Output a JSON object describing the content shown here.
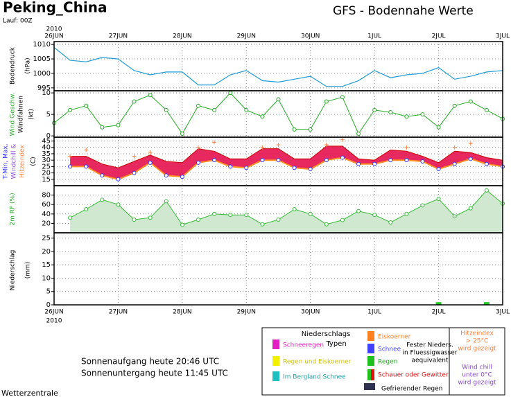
{
  "header": {
    "title": "Peking_China",
    "run": "Lauf: 00Z",
    "subtitle": "GFS - Bodennahe Werte",
    "year": "2010"
  },
  "dates": [
    "26JUN",
    "27JUN",
    "28JUN",
    "29JUN",
    "30JUN",
    "1JUL",
    "2JUL",
    "3JUL"
  ],
  "chart_data": [
    {
      "type": "line",
      "ylabel": [
        "Bodendruck",
        "(hPa)"
      ],
      "color": "#1e9bd7",
      "grid": true,
      "ylim": [
        994,
        1011
      ],
      "yticks": [
        995,
        1000,
        1005,
        1010
      ],
      "values": [
        1009,
        1004.5,
        1004,
        1005.5,
        1005,
        1001,
        999.5,
        1000.5,
        1000.5,
        996,
        996,
        999.5,
        1001,
        997.5,
        997,
        998,
        999,
        995.5,
        995.5,
        997.5,
        1001,
        998.5,
        999.5,
        1000,
        1002,
        998,
        999,
        1000.5,
        1001
      ]
    },
    {
      "type": "markedline",
      "ylabel": [
        "Wind Geschw.",
        "Windfahnen",
        "(kt)"
      ],
      "color": "#22aa22",
      "grid": true,
      "ylim": [
        -0.3,
        10.5
      ],
      "yticks": [
        0,
        5,
        10
      ],
      "values": [
        3,
        6,
        7,
        2,
        2.5,
        8,
        9.5,
        6,
        0.5,
        7,
        6,
        10,
        6,
        4.5,
        8.5,
        1.5,
        1.5,
        8,
        9,
        0.5,
        6,
        5.5,
        4.5,
        5,
        2,
        7,
        8,
        6,
        4
      ]
    },
    {
      "type": "band",
      "ylabel": [
        "T-Min, Max,",
        "Windchill &",
        "Hitzeindex",
        "(C)"
      ],
      "grid": true,
      "ylim": [
        10,
        48
      ],
      "yticks": [
        15,
        20,
        25,
        30,
        35,
        40,
        45
      ],
      "band_color": "#e4124f",
      "min_color": "#3030ff",
      "max_color": "#cc0000",
      "heat_color": "#ff8040",
      "min": [
        null,
        25,
        25,
        18,
        15,
        20,
        28,
        18,
        17,
        28,
        30,
        25,
        24,
        30,
        30,
        24,
        23,
        30,
        32,
        27,
        27,
        30,
        30,
        29,
        23,
        27,
        31,
        27,
        25
      ],
      "max": [
        null,
        33,
        33,
        27,
        24,
        29,
        34,
        29,
        28,
        39,
        37,
        31,
        31,
        39,
        39,
        31,
        31,
        41,
        41,
        31,
        30,
        38,
        37,
        33,
        28,
        37,
        36,
        32,
        30
      ],
      "heat": [
        null,
        33,
        38,
        null,
        null,
        33,
        36,
        null,
        null,
        40,
        44,
        null,
        null,
        40,
        42,
        null,
        null,
        42,
        46,
        null,
        null,
        null,
        40,
        null,
        null,
        40,
        43,
        null,
        null
      ]
    },
    {
      "type": "area",
      "ylabel": [
        "2m RF (%)"
      ],
      "color": "#33bb33",
      "fill": "#cfe8cf",
      "grid": true,
      "ylim": [
        0,
        100
      ],
      "yticks": [
        20,
        40,
        60,
        80
      ],
      "values": [
        null,
        32,
        50,
        70,
        60,
        28,
        32,
        67,
        17,
        28,
        40,
        38,
        38,
        18,
        28,
        50,
        40,
        18,
        27,
        46,
        38,
        22,
        40,
        58,
        72,
        35,
        52,
        90,
        62
      ]
    },
    {
      "type": "bar",
      "ylabel": [
        "Niederschlag",
        "(mm)"
      ],
      "color": "#22cc22",
      "grid": true,
      "ylim": [
        0,
        27
      ],
      "yticks": [
        0,
        5,
        10,
        15,
        20,
        25
      ],
      "values": [
        0,
        0,
        0,
        0,
        0,
        0,
        0,
        0,
        0,
        0,
        0,
        0,
        0,
        0,
        0,
        0,
        0,
        0,
        0,
        0,
        0,
        0,
        0,
        0,
        1,
        0,
        0,
        1,
        0
      ]
    }
  ],
  "footer": {
    "sunrise": "Sonnenaufgang heute 20:46 UTC",
    "sunset": "Sonnenuntergang heute 11:45 UTC",
    "credit": "Wetterzentrale"
  },
  "legend": {
    "title": [
      "Niederschlags",
      "Typen"
    ],
    "types": [
      "Schneeregen",
      "Regen und Eiskoerner",
      "Im Bergland Schnee",
      "Eiskoerner",
      "Schnee",
      "Regen",
      "Schauer oder Gewitter",
      "Gefrierender Regen"
    ],
    "solid": [
      "Fester Nieders.",
      "in Fluessigwasser",
      "aequivalent"
    ],
    "heat": [
      "Hitzeindex",
      "> 25°C",
      "wird gezeigt"
    ],
    "chill": [
      "Wind chill",
      "unter 0°C",
      "wird gezeigt"
    ]
  }
}
